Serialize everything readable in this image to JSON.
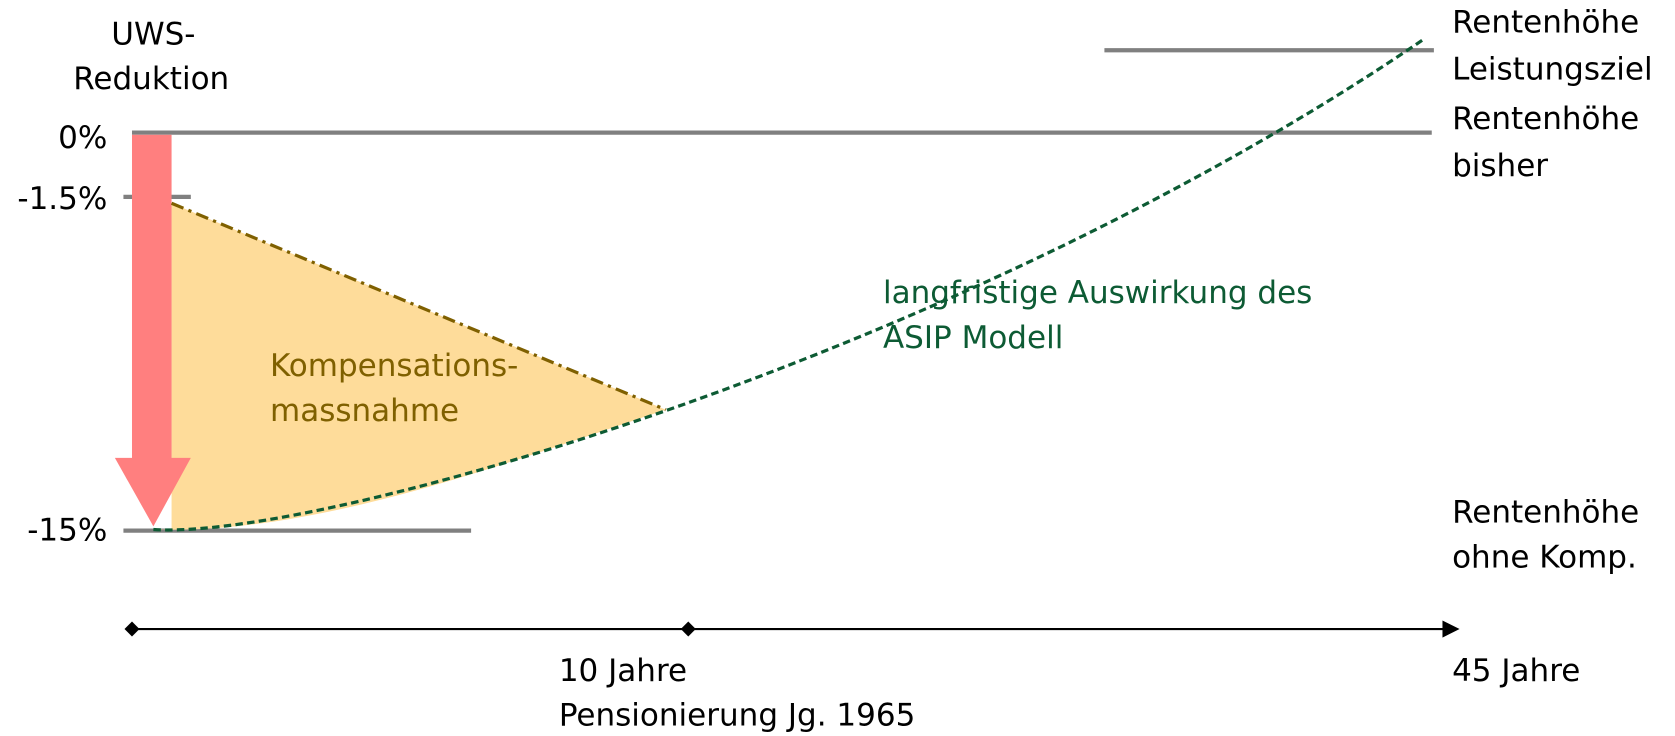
{
  "y_axis_title": [
    "UWS-",
    "Reduktion"
  ],
  "levels": [
    "0%",
    "-1.5%",
    "-15%"
  ],
  "outcomes": [
    {
      "lines": [
        "Rentenhöhe",
        "Leistungsziel"
      ]
    },
    {
      "lines": [
        "Rentenhöhe",
        "bisher"
      ]
    },
    {
      "lines": [
        "Rentenhöhe",
        "ohne Komp."
      ]
    }
  ],
  "compensation_label": [
    "Kompensations-",
    "massnahme"
  ],
  "long_term_label": [
    "langfristige Auswirkung des",
    "ASIP Modell"
  ],
  "timeline": {
    "mid": [
      "10 Jahre",
      "Pensionierung Jg. 1965"
    ],
    "end": [
      "45 Jahre"
    ]
  }
}
